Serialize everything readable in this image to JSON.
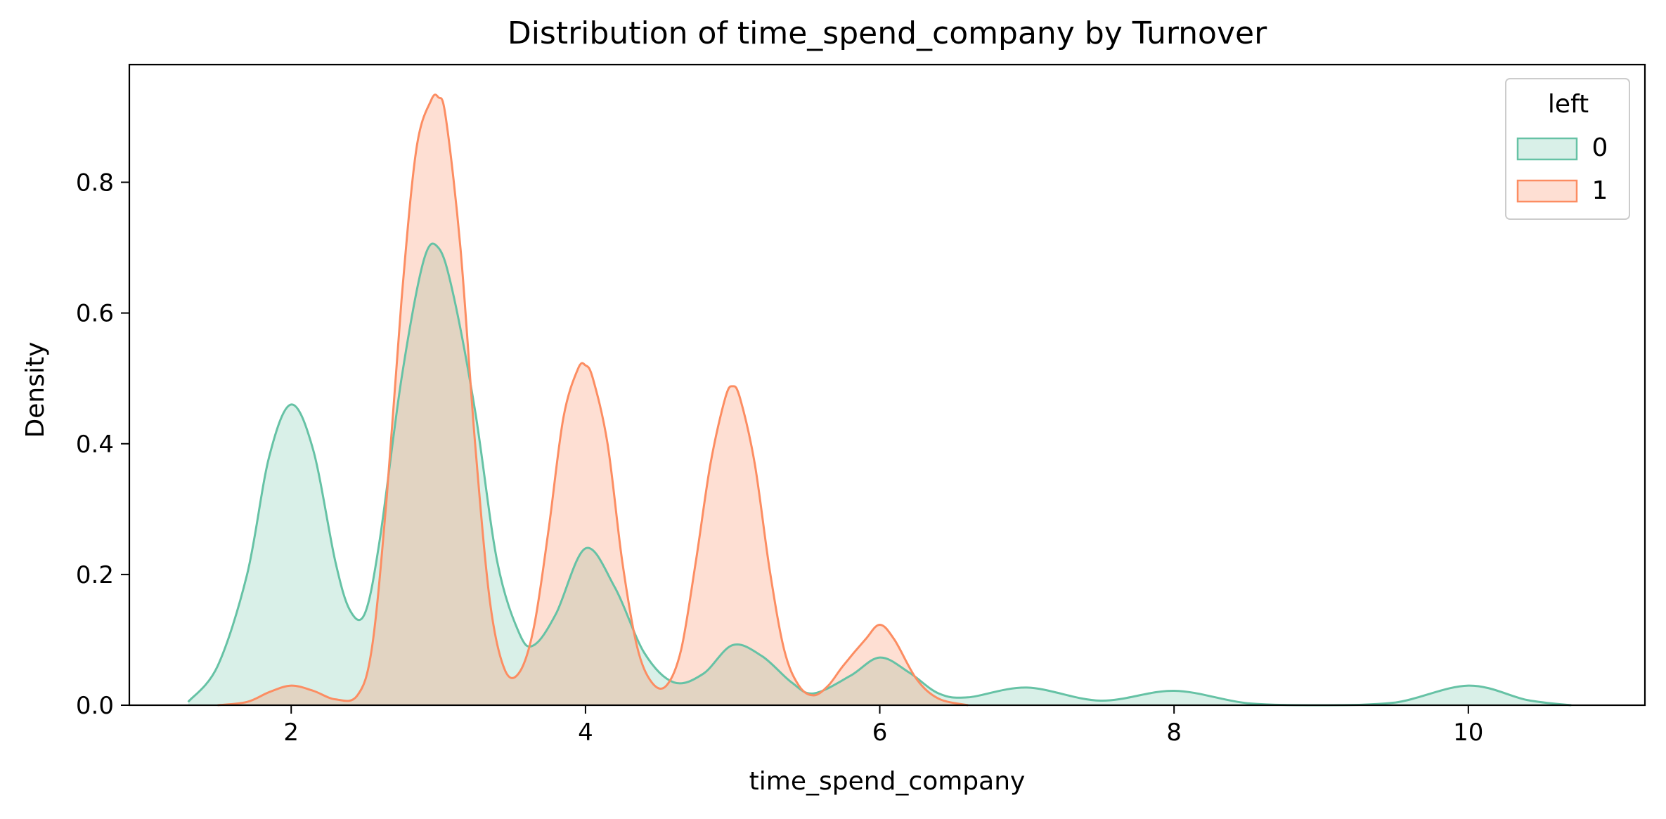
{
  "chart_data": {
    "type": "area",
    "title": "Distribution of time_spend_company by Turnover",
    "xlabel": "time_spend_company",
    "ylabel": "Density",
    "xlim": [
      0.9,
      11.2
    ],
    "ylim": [
      0,
      0.98
    ],
    "xticks": [
      2,
      4,
      6,
      8,
      10
    ],
    "yticks": [
      0.0,
      0.2,
      0.4,
      0.6,
      0.8
    ],
    "xtick_labels": [
      "2",
      "4",
      "6",
      "8",
      "10"
    ],
    "ytick_labels": [
      "0.0",
      "0.2",
      "0.4",
      "0.6",
      "0.8"
    ],
    "grid": false,
    "legend": {
      "title": "left",
      "placement": "top-right",
      "entries": [
        "0",
        "1"
      ]
    },
    "series": [
      {
        "name": "0",
        "color": "#66c2a5",
        "fill": "#66c2a5",
        "fill_opacity": 0.25,
        "x": [
          1.3,
          1.5,
          1.7,
          1.85,
          2.0,
          2.15,
          2.3,
          2.4,
          2.5,
          2.6,
          2.75,
          2.9,
          3.0,
          3.1,
          3.25,
          3.4,
          3.55,
          3.65,
          3.8,
          4.0,
          4.2,
          4.4,
          4.6,
          4.8,
          5.0,
          5.2,
          5.4,
          5.55,
          5.8,
          6.0,
          6.2,
          6.4,
          6.6,
          7.0,
          7.5,
          8.0,
          8.5,
          9.0,
          9.5,
          10.0,
          10.4,
          10.7
        ],
        "y": [
          0.005,
          0.06,
          0.2,
          0.38,
          0.46,
          0.39,
          0.22,
          0.145,
          0.14,
          0.25,
          0.5,
          0.68,
          0.7,
          0.63,
          0.45,
          0.22,
          0.11,
          0.092,
          0.14,
          0.24,
          0.18,
          0.08,
          0.035,
          0.048,
          0.092,
          0.075,
          0.035,
          0.018,
          0.045,
          0.073,
          0.05,
          0.018,
          0.012,
          0.027,
          0.007,
          0.022,
          0.003,
          0.0,
          0.004,
          0.03,
          0.008,
          0.0
        ]
      },
      {
        "name": "1",
        "color": "#fc8d62",
        "fill": "#fc8d62",
        "fill_opacity": 0.28,
        "x": [
          1.5,
          1.7,
          1.85,
          2.0,
          2.15,
          2.3,
          2.45,
          2.55,
          2.65,
          2.75,
          2.85,
          2.95,
          3.0,
          3.05,
          3.15,
          3.25,
          3.35,
          3.45,
          3.55,
          3.65,
          3.75,
          3.85,
          3.95,
          4.0,
          4.05,
          4.15,
          4.25,
          4.35,
          4.45,
          4.55,
          4.65,
          4.75,
          4.85,
          4.95,
          5.0,
          5.05,
          5.15,
          5.25,
          5.35,
          5.45,
          5.55,
          5.65,
          5.75,
          5.9,
          6.0,
          6.1,
          6.25,
          6.4,
          6.6
        ],
        "y": [
          0.0,
          0.005,
          0.02,
          0.03,
          0.022,
          0.009,
          0.015,
          0.09,
          0.32,
          0.62,
          0.85,
          0.925,
          0.93,
          0.9,
          0.7,
          0.4,
          0.16,
          0.055,
          0.05,
          0.12,
          0.27,
          0.44,
          0.515,
          0.52,
          0.5,
          0.4,
          0.22,
          0.09,
          0.035,
          0.03,
          0.085,
          0.22,
          0.37,
          0.47,
          0.488,
          0.47,
          0.37,
          0.21,
          0.085,
          0.03,
          0.015,
          0.03,
          0.06,
          0.1,
          0.123,
          0.1,
          0.04,
          0.01,
          0.0
        ]
      }
    ]
  }
}
